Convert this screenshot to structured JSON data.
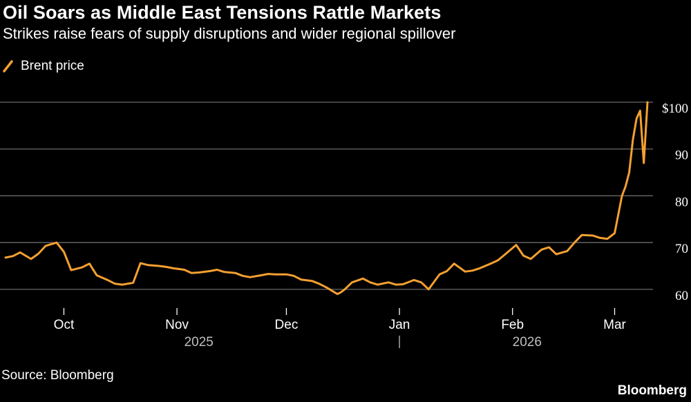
{
  "header": {
    "title": "Oil Soars as Middle East Tensions Rattle Markets",
    "subtitle": "Strikes raise fears of supply disruptions and wider regional spillover"
  },
  "legend": {
    "label": "Brent price",
    "icon": "diagonal-line-icon"
  },
  "footer": {
    "source": "Source: Bloomberg",
    "brand": "Bloomberg"
  },
  "colors": {
    "background": "#000000",
    "line": "#f5a031",
    "grid": "#6b6b6b",
    "text": "#ffffff",
    "year_label": "#bfbfbf"
  },
  "chart_data": {
    "type": "line",
    "title": "Oil Soars as Middle East Tensions Rattle Markets",
    "subtitle": "Strikes raise fears of supply disruptions and wider regional spillover",
    "xlabel": "",
    "ylabel": "",
    "grid": true,
    "legend_position": "top-left",
    "x_range": [
      "2025-09-15",
      "2026-03-10"
    ],
    "ylim": [
      56,
      100
    ],
    "y_ticks": [
      {
        "value": 100,
        "label": "$100"
      },
      {
        "value": 90,
        "label": "90"
      },
      {
        "value": 80,
        "label": "80"
      },
      {
        "value": 70,
        "label": "70"
      },
      {
        "value": 60,
        "label": "60"
      }
    ],
    "x_ticks": [
      {
        "date": "2025-10-01",
        "label": "Oct"
      },
      {
        "date": "2025-11-01",
        "label": "Nov"
      },
      {
        "date": "2025-12-01",
        "label": "Dec"
      },
      {
        "date": "2026-01-01",
        "label": "Jan"
      },
      {
        "date": "2026-02-01",
        "label": "Feb"
      },
      {
        "date": "2026-03-01",
        "label": "Mar"
      }
    ],
    "year_labels": [
      {
        "date": "2025-11-07",
        "label": "2025"
      },
      {
        "date": "2026-02-05",
        "label": "2026"
      }
    ],
    "year_separator_date": "2026-01-01",
    "series": [
      {
        "name": "Brent price",
        "x": [
          "2025-09-15",
          "2025-09-17",
          "2025-09-19",
          "2025-09-22",
          "2025-09-24",
          "2025-09-26",
          "2025-09-29",
          "2025-10-01",
          "2025-10-03",
          "2025-10-06",
          "2025-10-08",
          "2025-10-10",
          "2025-10-13",
          "2025-10-15",
          "2025-10-17",
          "2025-10-20",
          "2025-10-22",
          "2025-10-24",
          "2025-10-27",
          "2025-10-29",
          "2025-10-31",
          "2025-11-03",
          "2025-11-05",
          "2025-11-07",
          "2025-11-10",
          "2025-11-12",
          "2025-11-14",
          "2025-11-17",
          "2025-11-19",
          "2025-11-21",
          "2025-11-24",
          "2025-11-26",
          "2025-11-28",
          "2025-12-01",
          "2025-12-03",
          "2025-12-05",
          "2025-12-08",
          "2025-12-10",
          "2025-12-12",
          "2025-12-15",
          "2025-12-16",
          "2025-12-17",
          "2025-12-19",
          "2025-12-22",
          "2025-12-24",
          "2025-12-26",
          "2025-12-29",
          "2025-12-31",
          "2026-01-02",
          "2026-01-05",
          "2026-01-07",
          "2026-01-09",
          "2026-01-12",
          "2026-01-14",
          "2026-01-16",
          "2026-01-19",
          "2026-01-21",
          "2026-01-23",
          "2026-01-26",
          "2026-01-28",
          "2026-01-30",
          "2026-02-02",
          "2026-02-04",
          "2026-02-06",
          "2026-02-09",
          "2026-02-11",
          "2026-02-13",
          "2026-02-16",
          "2026-02-18",
          "2026-02-20",
          "2026-02-23",
          "2026-02-25",
          "2026-02-27",
          "2026-03-01",
          "2026-03-02",
          "2026-03-03",
          "2026-03-04",
          "2026-03-05",
          "2026-03-06",
          "2026-03-07",
          "2026-03-08",
          "2026-03-09",
          "2026-03-10"
        ],
        "values": [
          66.8,
          67.1,
          67.9,
          66.5,
          67.6,
          69.3,
          70.0,
          68.0,
          64.1,
          64.7,
          65.5,
          63.0,
          62.0,
          61.2,
          61.0,
          61.4,
          65.6,
          65.2,
          65.0,
          64.8,
          64.5,
          64.2,
          63.5,
          63.6,
          63.9,
          64.2,
          63.7,
          63.5,
          62.9,
          62.6,
          63.0,
          63.3,
          63.2,
          63.2,
          62.9,
          62.1,
          61.8,
          61.2,
          60.4,
          59.0,
          59.4,
          60.0,
          61.5,
          62.3,
          61.5,
          61.0,
          61.5,
          61.0,
          61.1,
          62.0,
          61.5,
          60.0,
          63.2,
          63.9,
          65.5,
          63.8,
          64.0,
          64.5,
          65.5,
          66.2,
          67.5,
          69.5,
          67.2,
          66.5,
          68.5,
          69.0,
          67.5,
          68.2,
          70.0,
          71.6,
          71.5,
          71.0,
          70.8,
          72.0,
          76.0,
          80.0,
          82.0,
          85.0,
          92.0,
          96.5,
          98.2,
          87.0,
          100.0
        ]
      }
    ]
  }
}
